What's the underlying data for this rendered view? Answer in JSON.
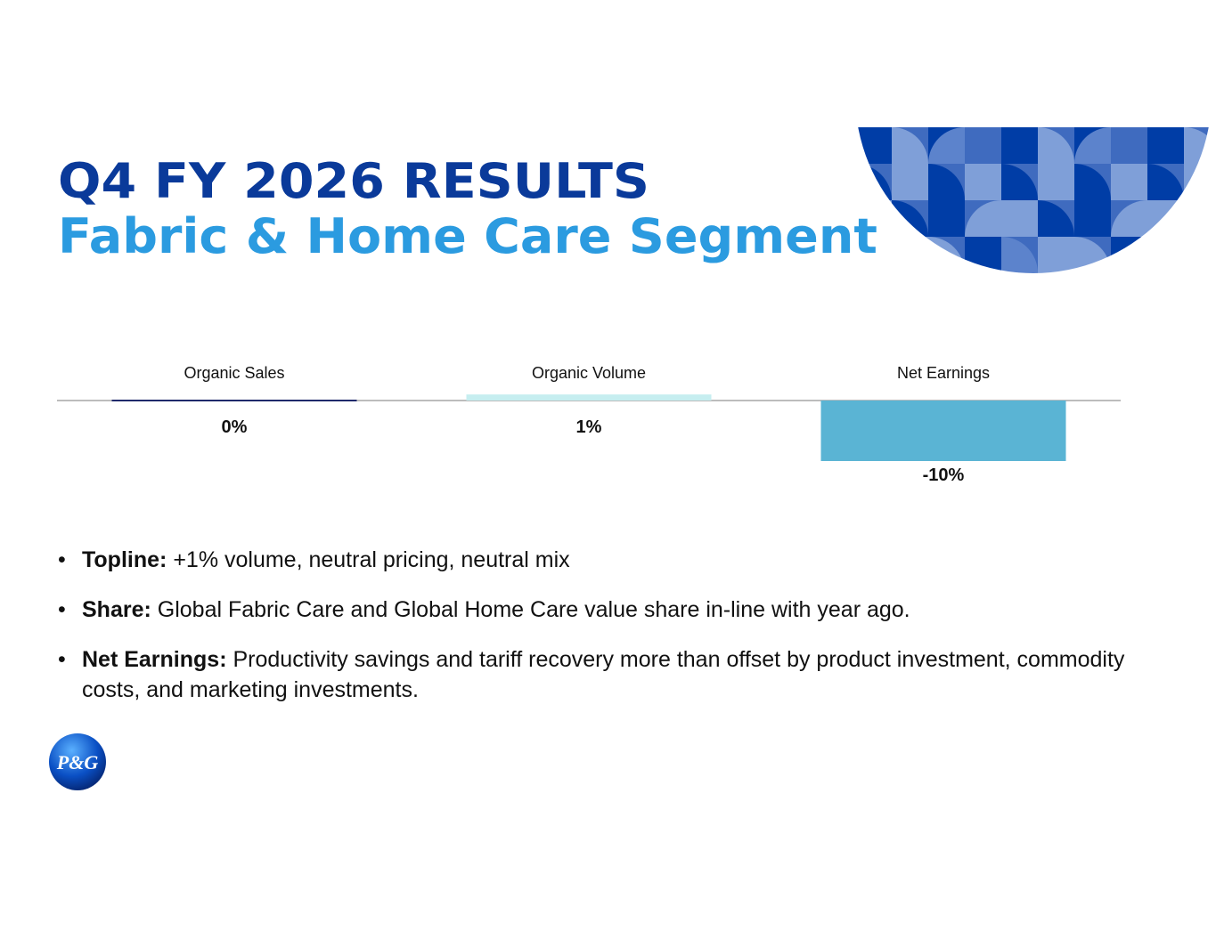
{
  "header": {
    "title": "Q4 FY 2026 RESULTS",
    "subtitle": "Fabric & Home Care Segment"
  },
  "chart_data": {
    "type": "bar",
    "categories": [
      "Organic Sales",
      "Organic Volume",
      "Net Earnings"
    ],
    "values": [
      0,
      1,
      -10
    ],
    "value_labels": [
      "0%",
      "1%",
      "-10%"
    ],
    "colors": [
      "#1f2a6b",
      "#c6eef0",
      "#5ab4d4"
    ]
  },
  "bullets": [
    {
      "label": "Topline:",
      "text": "+1% volume, neutral pricing, neutral mix"
    },
    {
      "label": "Share:",
      "text": "Global Fabric Care and Global Home Care value share in-line with year ago."
    },
    {
      "label": "Net Earnings:",
      "text": "Productivity savings and tariff recovery more than offset by product investment, commodity costs, and marketing investments."
    }
  ],
  "logo": {
    "text": "P&G"
  }
}
